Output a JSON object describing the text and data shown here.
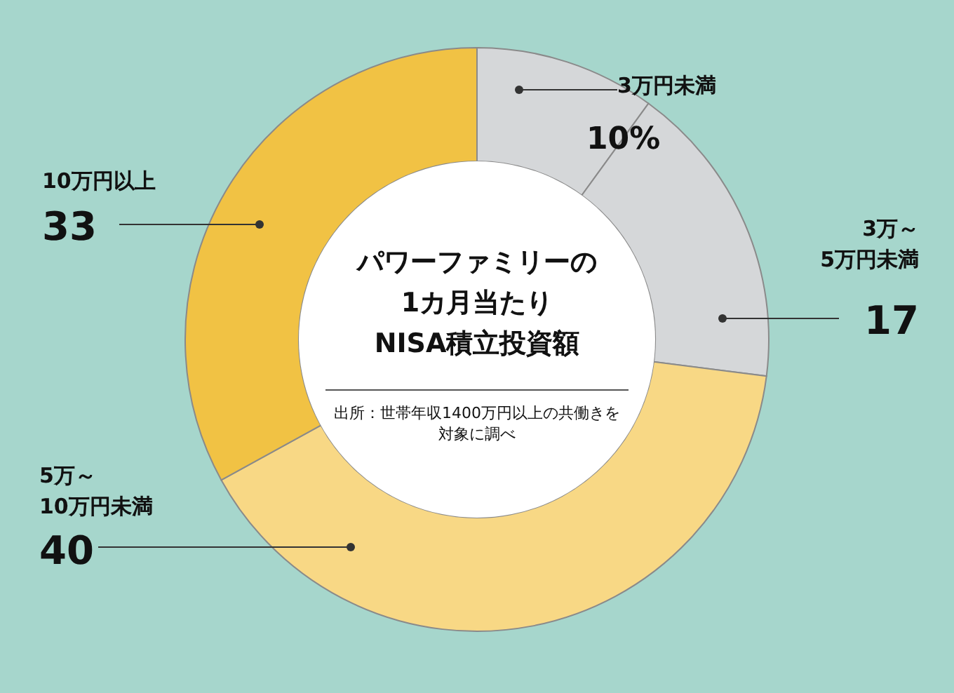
{
  "chart_data": {
    "type": "donut",
    "title": "パワーファミリーの\n1カ月当たり\nNISA積立投資額",
    "categories": [
      "3万円未満",
      "3万～\n5万円未満",
      "5万～\n10万円未満",
      "10万円以上"
    ],
    "values": [
      10,
      17,
      40,
      33
    ],
    "colors": [
      "#d5d7d9",
      "#d5d7d9",
      "#f8d885",
      "#f1c244"
    ],
    "value_labels": [
      "10%",
      "17",
      "40",
      "33"
    ],
    "annotations": [
      "出所：世帯年収1400万円以上の共働きを対象に調べ"
    ]
  }
}
